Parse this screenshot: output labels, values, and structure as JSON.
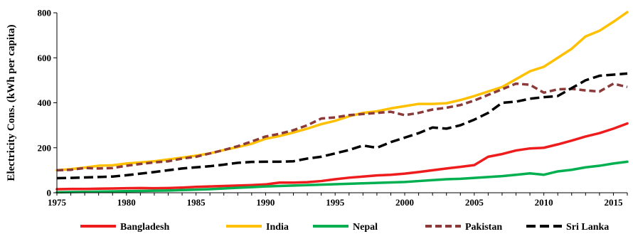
{
  "chart_data": {
    "type": "line",
    "title": "",
    "xlabel": "",
    "ylabel": "Electricity Cons.  (kWh per capita)",
    "xlim": [
      1975,
      2016
    ],
    "ylim": [
      0,
      800
    ],
    "xticks": [
      1975,
      1980,
      1985,
      1990,
      1995,
      2000,
      2005,
      2010,
      2015
    ],
    "yticks": [
      0,
      200,
      400,
      600,
      800
    ],
    "grid": false,
    "legend_position": "bottom",
    "x": [
      1975,
      1976,
      1977,
      1978,
      1979,
      1980,
      1981,
      1982,
      1983,
      1984,
      1985,
      1986,
      1987,
      1988,
      1989,
      1990,
      1991,
      1992,
      1993,
      1994,
      1995,
      1996,
      1997,
      1998,
      1999,
      2000,
      2001,
      2002,
      2003,
      2004,
      2005,
      2006,
      2007,
      2008,
      2009,
      2010,
      2011,
      2012,
      2013,
      2014,
      2015,
      2016
    ],
    "series": [
      {
        "name": "Bangladesh",
        "color": "#ee1c1c",
        "dash": "solid",
        "values": [
          16,
          17,
          17,
          18,
          19,
          20,
          21,
          20,
          21,
          23,
          26,
          28,
          30,
          32,
          34,
          37,
          45,
          45,
          47,
          52,
          60,
          67,
          72,
          77,
          80,
          85,
          92,
          100,
          108,
          115,
          123,
          160,
          172,
          188,
          197,
          200,
          215,
          232,
          250,
          265,
          285,
          308
        ]
      },
      {
        "name": "India",
        "color": "#ffc000",
        "dash": "solid",
        "values": [
          100,
          105,
          112,
          120,
          122,
          130,
          135,
          140,
          148,
          156,
          165,
          175,
          190,
          203,
          218,
          240,
          252,
          268,
          285,
          305,
          320,
          340,
          355,
          362,
          375,
          385,
          395,
          395,
          398,
          412,
          430,
          450,
          470,
          505,
          540,
          560,
          600,
          640,
          695,
          720,
          760,
          803
        ]
      },
      {
        "name": "Nepal",
        "color": "#00b050",
        "dash": "solid",
        "values": [
          2,
          3,
          4,
          5,
          6,
          7,
          8,
          9,
          10,
          12,
          14,
          16,
          19,
          22,
          25,
          28,
          30,
          32,
          34,
          36,
          38,
          40,
          42,
          44,
          46,
          48,
          52,
          56,
          60,
          62,
          66,
          70,
          74,
          80,
          86,
          80,
          95,
          102,
          113,
          120,
          130,
          138
        ]
      },
      {
        "name": "Pakistan",
        "color": "#8b3a3a",
        "dash": "dashed",
        "values": [
          100,
          102,
          110,
          108,
          110,
          120,
          128,
          135,
          140,
          152,
          160,
          175,
          190,
          207,
          228,
          250,
          262,
          278,
          300,
          330,
          335,
          345,
          350,
          355,
          360,
          345,
          355,
          370,
          378,
          390,
          410,
          435,
          460,
          485,
          480,
          445,
          460,
          462,
          455,
          450,
          485,
          470
        ]
      },
      {
        "name": "Sri Lanka",
        "color": "#000000",
        "dash": "dashed",
        "values": [
          65,
          66,
          68,
          70,
          72,
          78,
          85,
          92,
          100,
          108,
          113,
          118,
          125,
          133,
          137,
          138,
          138,
          140,
          152,
          160,
          175,
          190,
          210,
          200,
          225,
          245,
          265,
          290,
          285,
          300,
          325,
          355,
          400,
          405,
          418,
          425,
          430,
          465,
          500,
          520,
          525,
          530
        ]
      }
    ]
  }
}
